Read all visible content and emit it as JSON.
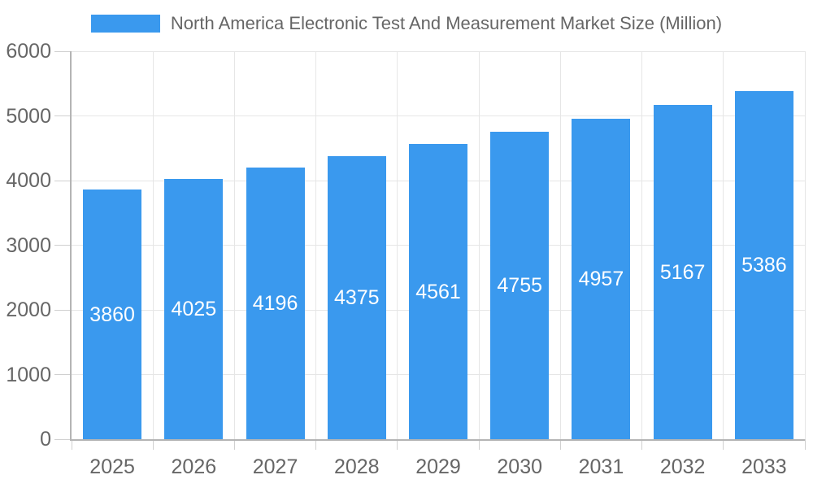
{
  "chart_data": {
    "type": "bar",
    "title": "North America Electronic Test And Measurement Market Size (Million)",
    "categories": [
      "2025",
      "2026",
      "2027",
      "2028",
      "2029",
      "2030",
      "2031",
      "2032",
      "2033"
    ],
    "values": [
      3860,
      4025,
      4196,
      4375,
      4561,
      4755,
      4957,
      5167,
      5386
    ],
    "xlabel": "",
    "ylabel": "",
    "ylim": [
      0,
      6000
    ],
    "yticks": [
      0,
      1000,
      2000,
      3000,
      4000,
      5000,
      6000
    ],
    "grid": true,
    "legend_position": "top",
    "value_labels": "inside-center",
    "colors": {
      "bar": "#3a99ee",
      "value_label_text": "#ffffff",
      "axis_text": "#666666",
      "legend_text": "#666666",
      "grid_line": "#e6e6e6",
      "axis_line": "#b4b4b4",
      "tick_line": "#d0d0d0",
      "background": "#ffffff"
    }
  }
}
